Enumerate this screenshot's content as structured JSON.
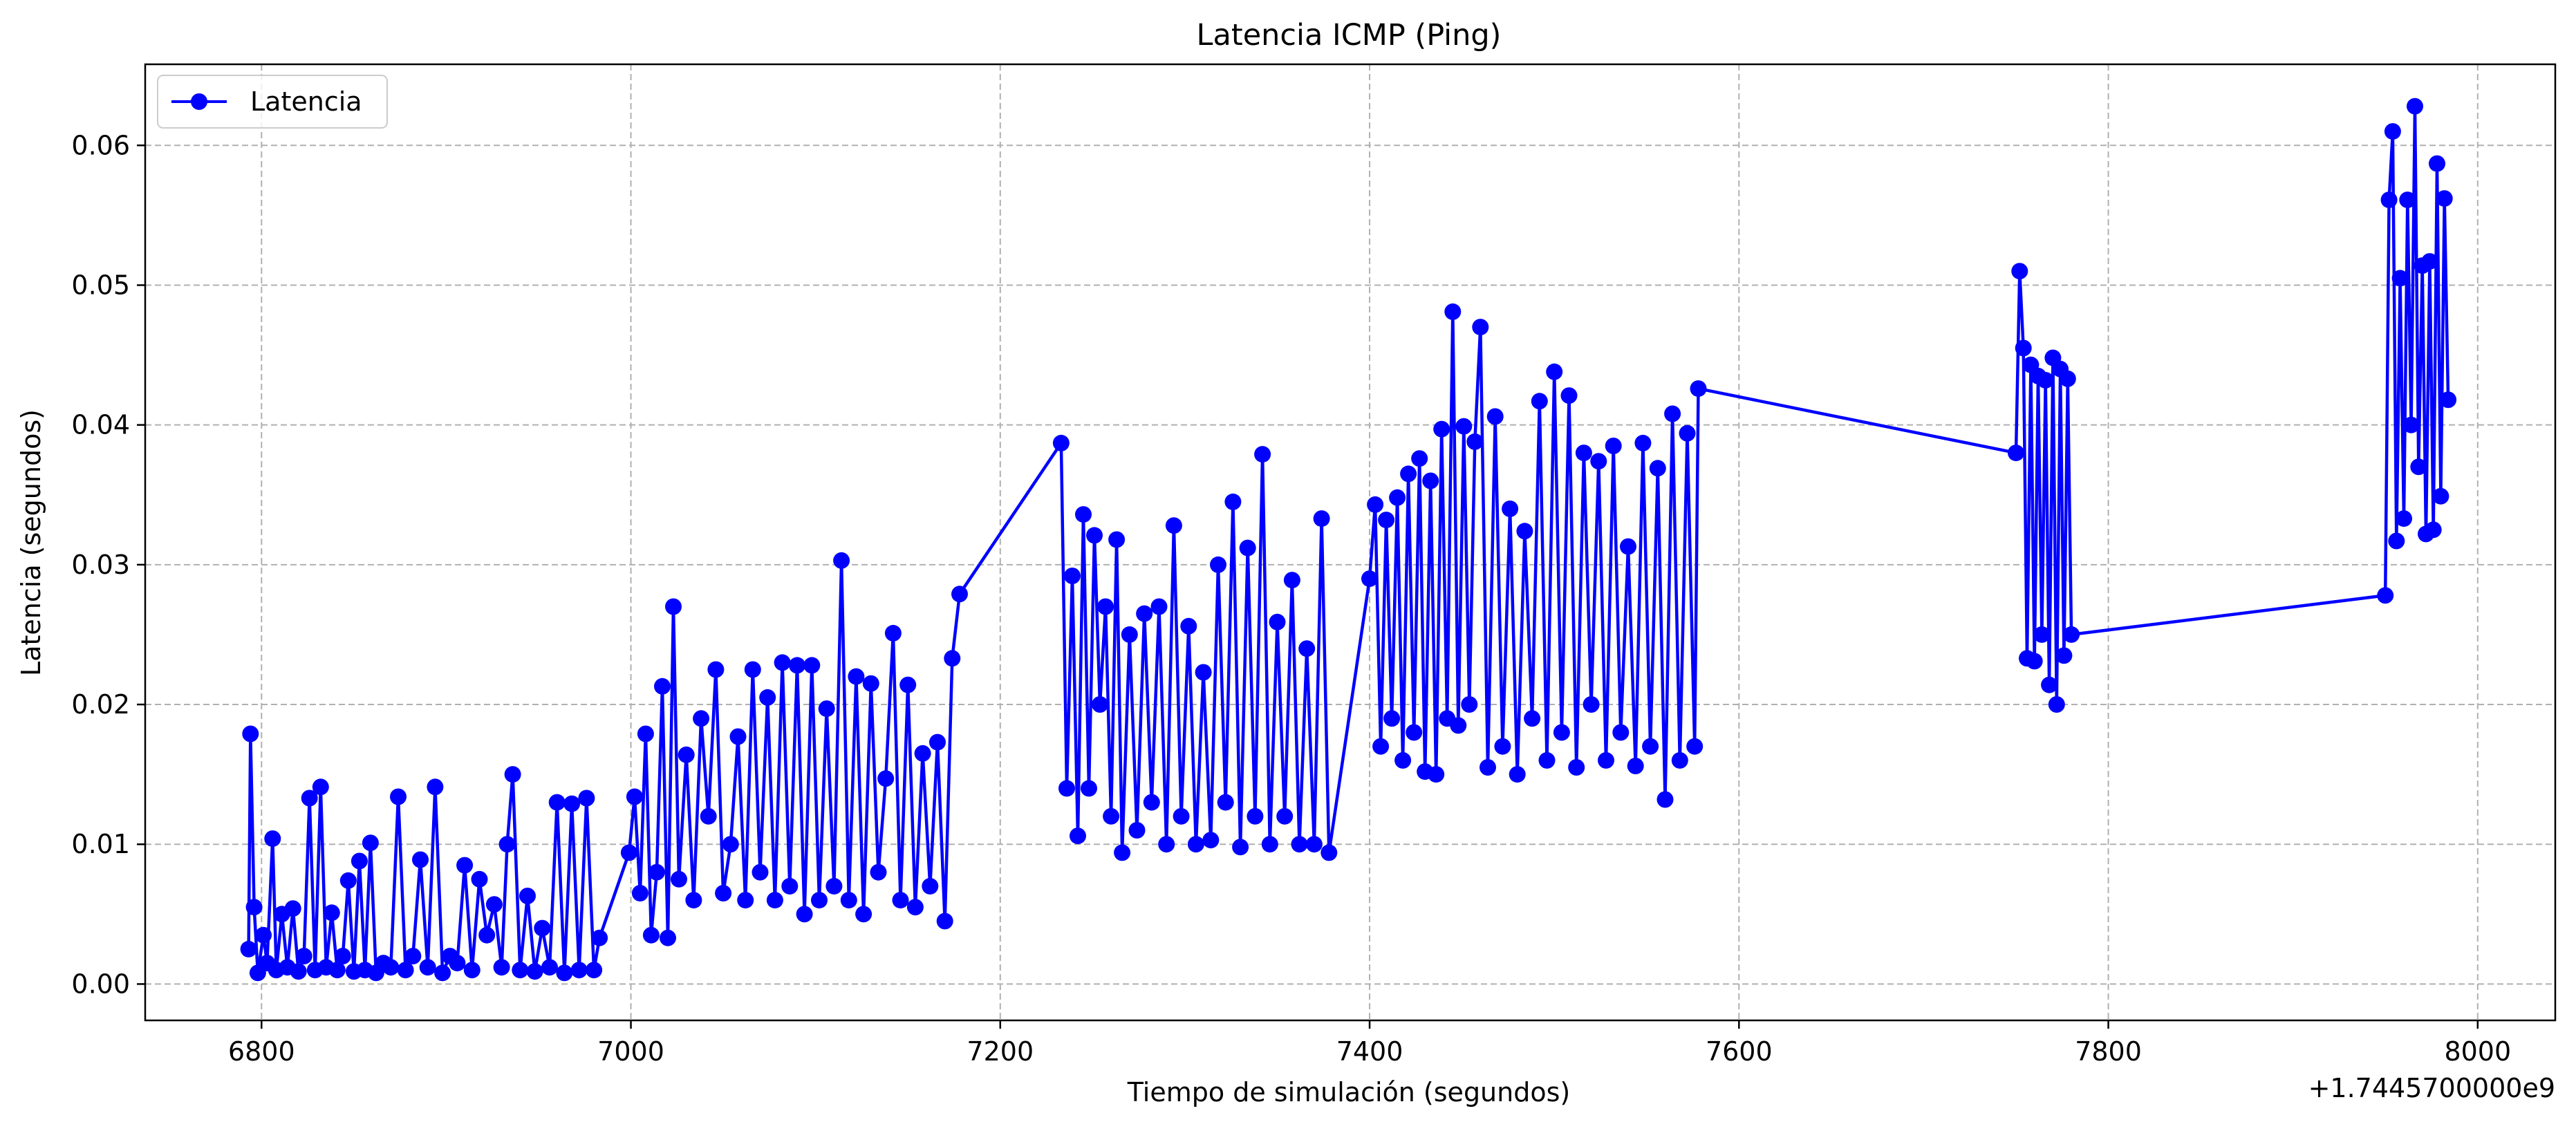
{
  "chart_data": {
    "type": "line",
    "title": "Latencia ICMP (Ping)",
    "xlabel": "Tiempo de simulación (segundos)",
    "ylabel": "Latencia (segundos)",
    "x_offset_label": "+1.7445700000e9",
    "xlim": [
      6737,
      8042
    ],
    "ylim": [
      -0.0026,
      0.0658
    ],
    "x_ticks": [
      6800,
      7000,
      7200,
      7400,
      7600,
      7800,
      8000
    ],
    "y_ticks": [
      0.0,
      0.01,
      0.02,
      0.03,
      0.04,
      0.05,
      0.06
    ],
    "y_tick_labels": [
      "0.00",
      "0.01",
      "0.02",
      "0.03",
      "0.04",
      "0.05",
      "0.06"
    ],
    "grid": true,
    "legend_position": "upper-left",
    "colors": {
      "series": "#0000ff"
    },
    "series": [
      {
        "name": "Latencia",
        "marker": "circle",
        "x": [
          6793,
          6794,
          6796,
          6798,
          6801,
          6803,
          6806,
          6808,
          6811,
          6814,
          6817,
          6820,
          6823,
          6826,
          6829,
          6832,
          6835,
          6838,
          6841,
          6844,
          6847,
          6850,
          6853,
          6856,
          6859,
          6862,
          6866,
          6870,
          6874,
          6878,
          6882,
          6886,
          6890,
          6894,
          6898,
          6902,
          6906,
          6910,
          6914,
          6918,
          6922,
          6926,
          6930,
          6933,
          6936,
          6940,
          6944,
          6948,
          6952,
          6956,
          6960,
          6964,
          6968,
          6972,
          6976,
          6980,
          6983,
          6999,
          7002,
          7005,
          7008,
          7011,
          7014,
          7017,
          7020,
          7023,
          7026,
          7030,
          7034,
          7038,
          7042,
          7046,
          7050,
          7054,
          7058,
          7062,
          7066,
          7070,
          7074,
          7078,
          7082,
          7086,
          7090,
          7094,
          7098,
          7102,
          7106,
          7110,
          7114,
          7118,
          7122,
          7126,
          7130,
          7134,
          7138,
          7142,
          7146,
          7150,
          7154,
          7158,
          7162,
          7166,
          7170,
          7174,
          7178,
          7233,
          7236,
          7239,
          7242,
          7245,
          7248,
          7251,
          7254,
          7257,
          7260,
          7263,
          7266,
          7270,
          7274,
          7278,
          7282,
          7286,
          7290,
          7294,
          7298,
          7302,
          7306,
          7310,
          7314,
          7318,
          7322,
          7326,
          7330,
          7334,
          7338,
          7342,
          7346,
          7350,
          7354,
          7358,
          7362,
          7366,
          7370,
          7374,
          7378,
          7400,
          7403,
          7406,
          7409,
          7412,
          7415,
          7418,
          7421,
          7424,
          7427,
          7430,
          7433,
          7436,
          7439,
          7442,
          7445,
          7448,
          7451,
          7454,
          7457,
          7460,
          7464,
          7468,
          7472,
          7476,
          7480,
          7484,
          7488,
          7492,
          7496,
          7500,
          7504,
          7508,
          7512,
          7516,
          7520,
          7524,
          7528,
          7532,
          7536,
          7540,
          7544,
          7548,
          7552,
          7556,
          7560,
          7564,
          7568,
          7572,
          7576,
          7578,
          7750,
          7752,
          7754,
          7756,
          7758,
          7760,
          7762,
          7764,
          7766,
          7768,
          7770,
          7772,
          7774,
          7776,
          7778,
          7780,
          7950,
          7952,
          7954,
          7956,
          7958,
          7960,
          7962,
          7964,
          7966,
          7968,
          7970,
          7972,
          7974,
          7976,
          7978,
          7980,
          7982,
          7984
        ],
        "y": [
          0.0025,
          0.0179,
          0.0055,
          0.0008,
          0.0035,
          0.0015,
          0.0104,
          0.001,
          0.005,
          0.0012,
          0.0054,
          0.0009,
          0.002,
          0.0133,
          0.001,
          0.0141,
          0.0012,
          0.0051,
          0.001,
          0.002,
          0.0074,
          0.0009,
          0.0088,
          0.001,
          0.0101,
          0.0008,
          0.0015,
          0.0012,
          0.0134,
          0.001,
          0.002,
          0.0089,
          0.0012,
          0.0141,
          0.0008,
          0.002,
          0.0015,
          0.0085,
          0.001,
          0.0075,
          0.0035,
          0.0057,
          0.0012,
          0.01,
          0.015,
          0.001,
          0.0063,
          0.0009,
          0.004,
          0.0012,
          0.013,
          0.0008,
          0.0129,
          0.001,
          0.0133,
          0.001,
          0.0033,
          0.0094,
          0.0134,
          0.0065,
          0.0179,
          0.0035,
          0.008,
          0.0213,
          0.0033,
          0.027,
          0.0075,
          0.0164,
          0.006,
          0.019,
          0.012,
          0.0225,
          0.0065,
          0.01,
          0.0177,
          0.006,
          0.0225,
          0.008,
          0.0205,
          0.006,
          0.023,
          0.007,
          0.0228,
          0.005,
          0.0228,
          0.006,
          0.0197,
          0.007,
          0.0303,
          0.006,
          0.022,
          0.005,
          0.0215,
          0.008,
          0.0147,
          0.0251,
          0.006,
          0.0214,
          0.0055,
          0.0165,
          0.007,
          0.0173,
          0.0045,
          0.0233,
          0.0279,
          0.0387,
          0.014,
          0.0292,
          0.0106,
          0.0336,
          0.014,
          0.0321,
          0.02,
          0.027,
          0.012,
          0.0318,
          0.0094,
          0.025,
          0.011,
          0.0265,
          0.013,
          0.027,
          0.01,
          0.0328,
          0.012,
          0.0256,
          0.01,
          0.0223,
          0.0103,
          0.03,
          0.013,
          0.0345,
          0.0098,
          0.0312,
          0.012,
          0.0379,
          0.01,
          0.0259,
          0.012,
          0.0289,
          0.01,
          0.024,
          0.01,
          0.0333,
          0.0094,
          0.029,
          0.0343,
          0.017,
          0.0332,
          0.019,
          0.0348,
          0.016,
          0.0365,
          0.018,
          0.0376,
          0.0152,
          0.036,
          0.015,
          0.0397,
          0.019,
          0.0481,
          0.0185,
          0.0399,
          0.02,
          0.0388,
          0.047,
          0.0155,
          0.0406,
          0.017,
          0.034,
          0.015,
          0.0324,
          0.019,
          0.0417,
          0.016,
          0.0438,
          0.018,
          0.0421,
          0.0155,
          0.038,
          0.02,
          0.0374,
          0.016,
          0.0385,
          0.018,
          0.0313,
          0.0156,
          0.0387,
          0.017,
          0.0369,
          0.0132,
          0.0408,
          0.016,
          0.0394,
          0.017,
          0.0426,
          0.038,
          0.051,
          0.0455,
          0.0233,
          0.0443,
          0.0231,
          0.0435,
          0.025,
          0.0432,
          0.0214,
          0.0448,
          0.02,
          0.044,
          0.0235,
          0.0433,
          0.025,
          0.0278,
          0.0561,
          0.061,
          0.0317,
          0.0505,
          0.0333,
          0.0561,
          0.04,
          0.0628,
          0.037,
          0.0514,
          0.0322,
          0.0517,
          0.0325,
          0.0587,
          0.0349,
          0.0562,
          0.0418
        ]
      }
    ]
  }
}
